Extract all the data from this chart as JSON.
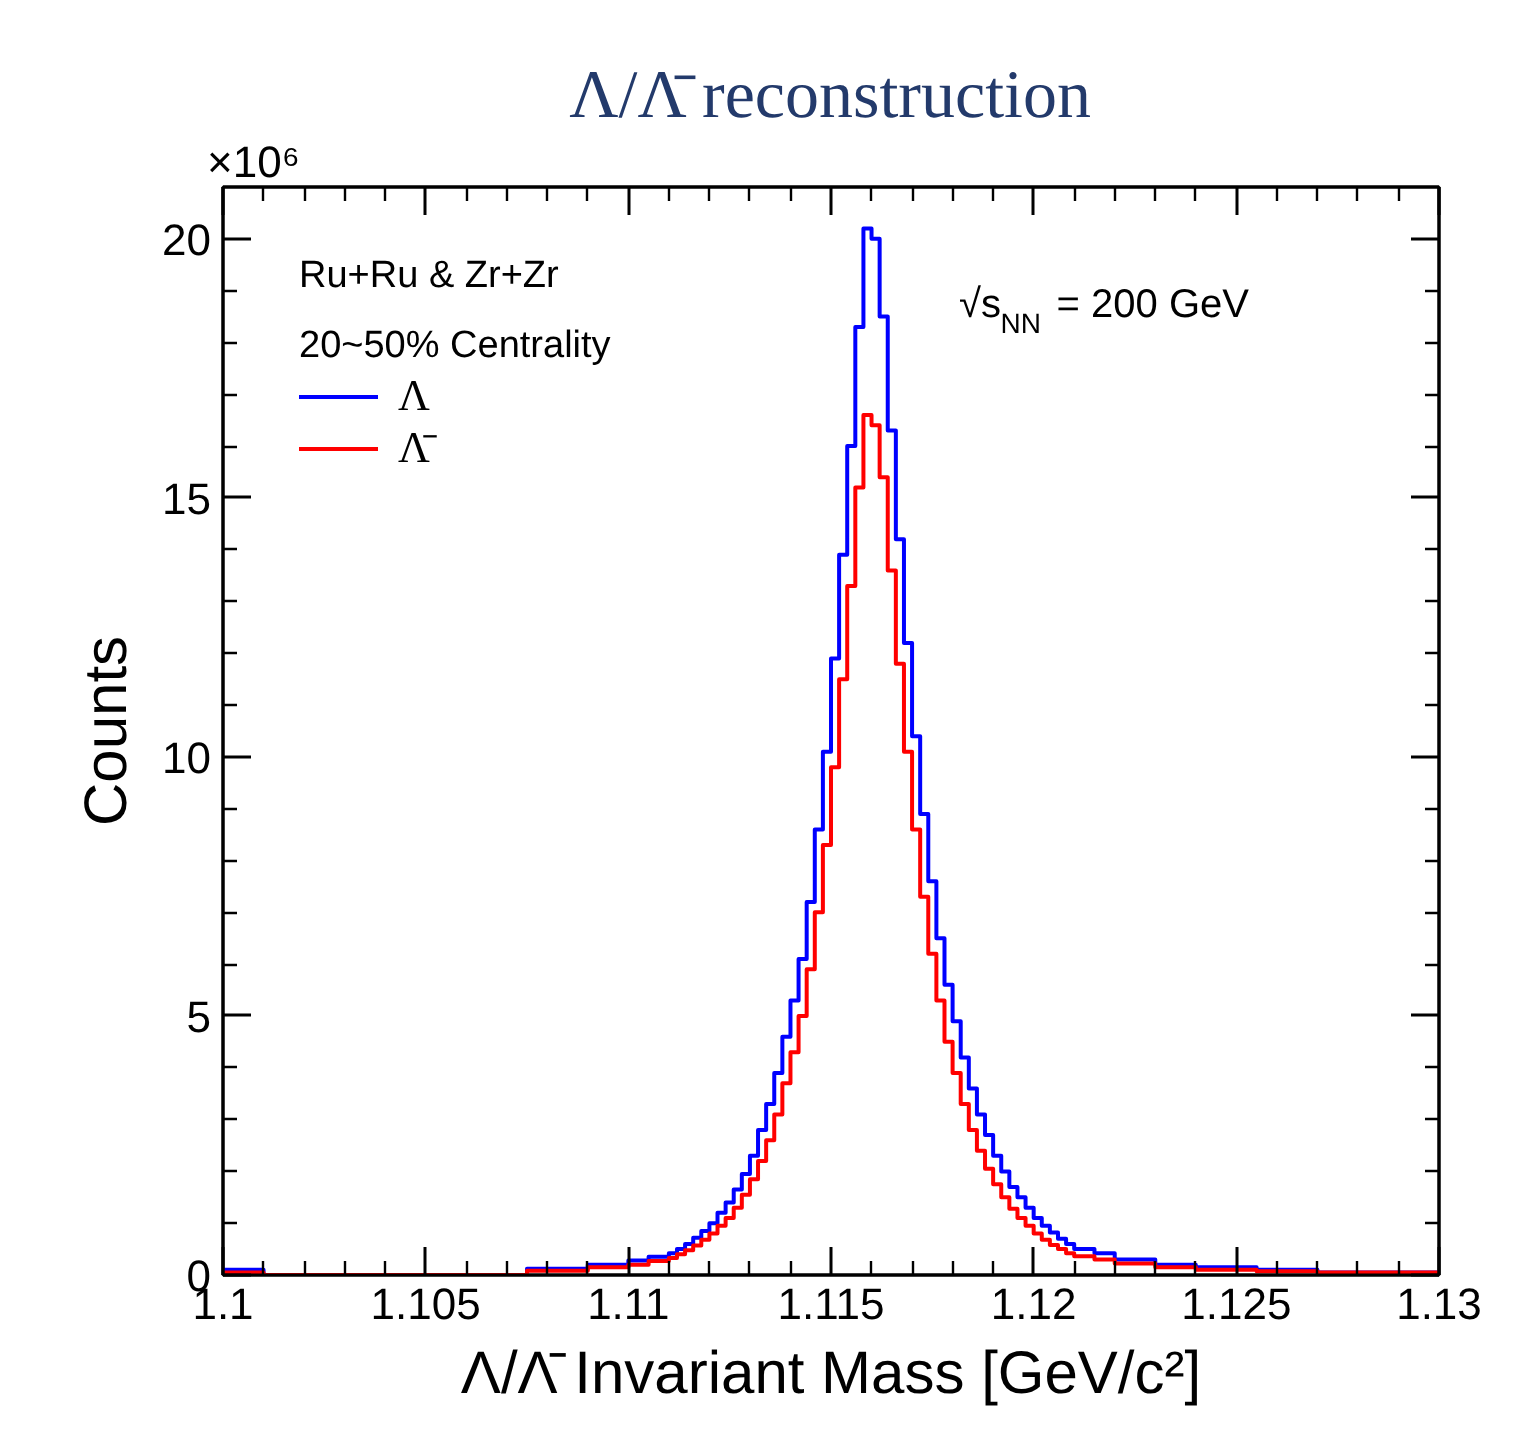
{
  "chart_data": {
    "type": "histogram",
    "title": "Λ/Λ̄ reconstruction",
    "xlabel": "Λ/Λ̄ Invariant Mass [GeV/c²]",
    "ylabel": "Counts",
    "annotations": [
      "×10⁶",
      "Ru+Ru & Zr+Zr",
      "20~50% Centrality",
      "√s$_{NN}$ = 200 GeV"
    ],
    "bins": [
      1.1,
      1.101,
      1.1075,
      1.109,
      1.11,
      1.1105,
      1.111,
      1.1112,
      1.1114,
      1.1116,
      1.1118,
      1.112,
      1.1122,
      1.1124,
      1.1126,
      1.1128,
      1.113,
      1.1132,
      1.1134,
      1.1136,
      1.1138,
      1.114,
      1.1142,
      1.1144,
      1.1146,
      1.1148,
      1.115,
      1.1152,
      1.1154,
      1.1156,
      1.1158,
      1.116,
      1.1162,
      1.1164,
      1.1166,
      1.1168,
      1.117,
      1.1172,
      1.1174,
      1.1176,
      1.1178,
      1.118,
      1.1182,
      1.1184,
      1.1186,
      1.1188,
      1.119,
      1.1192,
      1.1194,
      1.1196,
      1.1198,
      1.12,
      1.1202,
      1.1204,
      1.1206,
      1.1208,
      1.121,
      1.1215,
      1.122,
      1.123,
      1.124,
      1.1255,
      1.127,
      1.13
    ],
    "series": [
      {
        "name": "Λ",
        "color": "#0000ff",
        "values": [
          0.1,
          0,
          0.12,
          0.2,
          0.28,
          0.35,
          0.42,
          0.5,
          0.6,
          0.72,
          0.85,
          1.0,
          1.2,
          1.4,
          1.65,
          1.95,
          2.3,
          2.8,
          3.3,
          3.9,
          4.6,
          5.3,
          6.1,
          7.2,
          8.6,
          10.1,
          11.9,
          13.9,
          16.0,
          18.3,
          20.2,
          20.0,
          18.5,
          16.3,
          14.2,
          12.2,
          10.4,
          8.9,
          7.6,
          6.5,
          5.6,
          4.9,
          4.2,
          3.6,
          3.1,
          2.7,
          2.3,
          2.0,
          1.7,
          1.5,
          1.3,
          1.1,
          0.95,
          0.82,
          0.7,
          0.6,
          0.5,
          0.42,
          0.3,
          0.2,
          0.15,
          0.1,
          0.05
        ]
      },
      {
        "name": "Λ̄",
        "color": "#ff0000",
        "values": [
          0.05,
          0,
          0.08,
          0.15,
          0.2,
          0.27,
          0.33,
          0.4,
          0.48,
          0.57,
          0.68,
          0.8,
          0.95,
          1.1,
          1.3,
          1.55,
          1.85,
          2.2,
          2.6,
          3.1,
          3.7,
          4.3,
          5.0,
          5.9,
          7.0,
          8.3,
          9.8,
          11.5,
          13.3,
          15.2,
          16.6,
          16.4,
          15.4,
          13.6,
          11.8,
          10.1,
          8.6,
          7.3,
          6.2,
          5.3,
          4.5,
          3.9,
          3.3,
          2.8,
          2.4,
          2.05,
          1.75,
          1.5,
          1.28,
          1.1,
          0.95,
          0.8,
          0.68,
          0.58,
          0.5,
          0.42,
          0.36,
          0.3,
          0.22,
          0.15,
          0.1,
          0.07,
          0.05
        ]
      }
    ],
    "xlim": [
      1.1,
      1.13
    ],
    "xticks": [
      1.1,
      1.105,
      1.11,
      1.115,
      1.12,
      1.125,
      1.13
    ],
    "ylim": [
      0,
      21
    ],
    "yticks": [
      0,
      5,
      10,
      15,
      20
    ],
    "legend": "top left",
    "line_style": "solid"
  }
}
